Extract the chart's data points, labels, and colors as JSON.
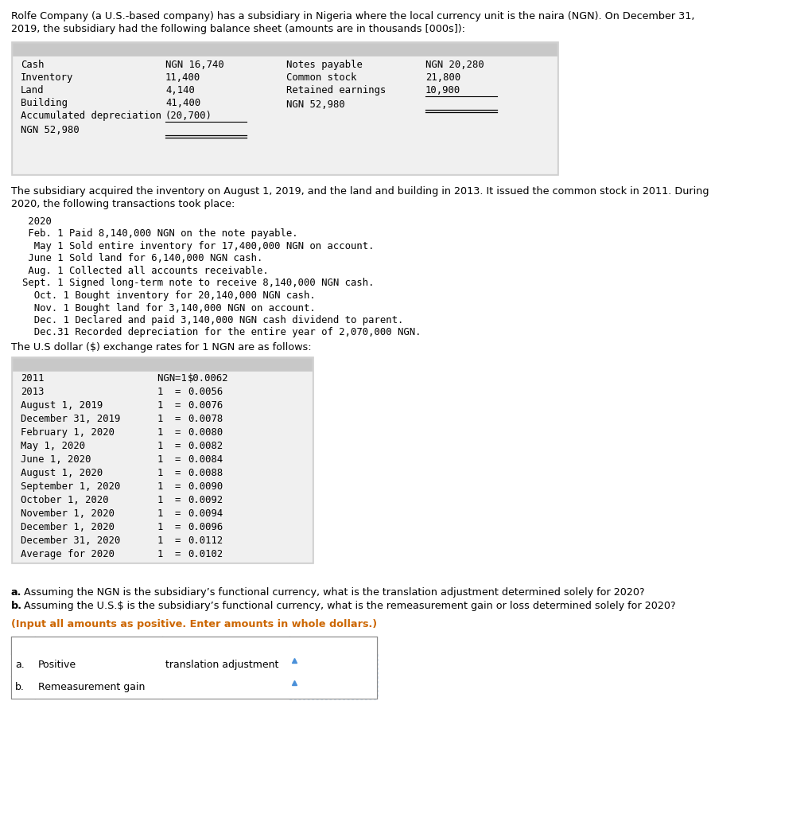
{
  "title_line1": "Rolfe Company (a U.S.-based company) has a subsidiary in Nigeria where the local currency unit is the naira (NGN). On December 31,",
  "title_line2": "2019, the subsidiary had the following balance sheet (amounts are in thousands [000s]):",
  "balance_sheet": {
    "assets": [
      [
        "Cash",
        "NGN 16,740"
      ],
      [
        "Inventory",
        "11,400"
      ],
      [
        "Land",
        "4,140"
      ],
      [
        "Building",
        "41,400"
      ],
      [
        "Accumulated depreciation",
        "(20,700)"
      ]
    ],
    "asset_total": "NGN 52,980",
    "liabilities": [
      [
        "Notes payable",
        "NGN 20,280"
      ],
      [
        "Common stock",
        "21,800"
      ],
      [
        "Retained earnings",
        "10,900"
      ]
    ],
    "liability_total": "NGN 52,980"
  },
  "subtitle_line1": "The subsidiary acquired the inventory on August 1, 2019, and the land and building in 2013. It issued the common stock in 2011. During",
  "subtitle_line2": "2020, the following transactions took place:",
  "transactions": [
    " 2020",
    " Feb. 1 Paid 8,140,000 NGN on the note payable.",
    "  May 1 Sold entire inventory for 17,400,000 NGN on account.",
    " June 1 Sold land for 6,140,000 NGN cash.",
    " Aug. 1 Collected all accounts receivable.",
    "Sept. 1 Signed long-term note to receive 8,140,000 NGN cash.",
    "  Oct. 1 Bought inventory for 20,140,000 NGN cash.",
    "  Nov. 1 Bought land for 3,140,000 NGN on account.",
    "  Dec. 1 Declared and paid 3,140,000 NGN cash dividend to parent.",
    "  Dec.31 Recorded depreciation for the entire year of 2,070,000 NGN."
  ],
  "exchange_intro": "The U.S dollar ($) exchange rates for 1 NGN are as follows:",
  "exchange_dates": [
    "2011",
    "2013",
    "August 1, 2019",
    "December 31, 2019",
    "February 1, 2020",
    "May 1, 2020",
    "June 1, 2020",
    "August 1, 2020",
    "September 1, 2020",
    "October 1, 2020",
    "November 1, 2020",
    "December 1, 2020",
    "December 31, 2020",
    "Average for 2020"
  ],
  "exchange_col1": [
    "NGN 1",
    "1",
    "1",
    "1",
    "1",
    "1",
    "1",
    "1",
    "1",
    "1",
    "1",
    "1",
    "1",
    "1"
  ],
  "exchange_rates": [
    "$0.0062",
    "0.0056",
    "0.0076",
    "0.0078",
    "0.0080",
    "0.0082",
    "0.0084",
    "0.0088",
    "0.0090",
    "0.0092",
    "0.0094",
    "0.0096",
    "0.0112",
    "0.0102"
  ],
  "q1": "a. Assuming the NGN is the subsidiary’s functional currency, what is the translation adjustment determined solely for 2020?",
  "q2": "b. Assuming the U.S.$ is the subsidiary’s functional currency, what is the remeasurement gain or loss determined solely for 2020?",
  "input_note": "(Input all amounts as positive. Enter amounts in whole dollars.)",
  "row_a_col1": "a.",
  "row_a_col2": "Positive",
  "row_a_col3": "translation adjustment",
  "row_b_col1": "b.",
  "row_b_col2": "Remeasurement gain",
  "header_bg": "#a8c4e0",
  "table_border": "#888888",
  "table_row_bg": "#ffffff",
  "bs_bg": "#d0d0d0",
  "bs_inner": "#f0f0f0",
  "ex_bg": "#d0d0d0",
  "ex_inner": "#f0f0f0"
}
